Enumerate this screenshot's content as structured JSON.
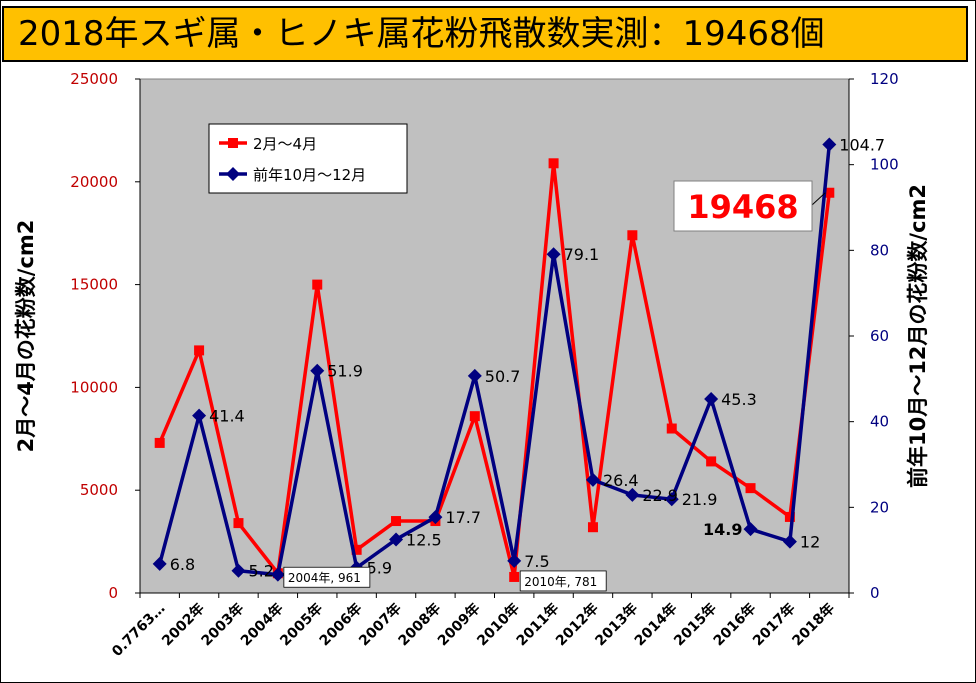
{
  "chart_data": {
    "type": "line",
    "title": "2018年スギ属・ヒノキ属花粉飛散数実測：19468個",
    "ylabel_left": "2月～4月の花粉数/cm2",
    "ylabel_right": "前年10月～12月の花粉数/cm2",
    "ylim_left": [
      0,
      25000
    ],
    "ylim_right": [
      0,
      120
    ],
    "yticks_left": [
      "0",
      "5000",
      "10000",
      "15000",
      "20000",
      "25000"
    ],
    "yticks_right": [
      "0",
      "20",
      "40",
      "60",
      "80",
      "100",
      "120"
    ],
    "categories": [
      "0.7763…",
      "2002年",
      "2003年",
      "2004年",
      "2005年",
      "2006年",
      "2007年",
      "2008年",
      "2009年",
      "2010年",
      "2011年",
      "2012年",
      "2013年",
      "2014年",
      "2015年",
      "2016年",
      "2017年",
      "2018年"
    ],
    "grid": false,
    "legend_position": "top-left",
    "series": [
      {
        "name": "2月～4月",
        "axis": "left",
        "color": "#ff0000",
        "values": [
          7300,
          11800,
          3400,
          961,
          15000,
          2100,
          3500,
          3500,
          8600,
          781,
          20900,
          3200,
          17400,
          8000,
          6400,
          5100,
          3700,
          19468
        ]
      },
      {
        "name": "前年10月～12月",
        "axis": "right",
        "color": "#000080",
        "values": [
          6.8,
          41.4,
          5.2,
          4.3,
          51.9,
          5.9,
          12.5,
          17.7,
          50.7,
          7.5,
          79.1,
          26.4,
          22.9,
          21.9,
          45.3,
          14.9,
          12,
          104.7
        ]
      }
    ],
    "data_labels": [
      {
        "series": 1,
        "index": 0,
        "text": "6.8"
      },
      {
        "series": 1,
        "index": 1,
        "text": "41.4"
      },
      {
        "series": 1,
        "index": 2,
        "text": "5.2"
      },
      {
        "series": 1,
        "index": 3,
        "text": "4.3"
      },
      {
        "series": 1,
        "index": 4,
        "text": "51.9"
      },
      {
        "series": 1,
        "index": 5,
        "text": "5.9"
      },
      {
        "series": 1,
        "index": 6,
        "text": "12.5"
      },
      {
        "series": 1,
        "index": 7,
        "text": "17.7"
      },
      {
        "series": 1,
        "index": 8,
        "text": "50.7"
      },
      {
        "series": 1,
        "index": 9,
        "text": "7.5"
      },
      {
        "series": 1,
        "index": 10,
        "text": "79.1"
      },
      {
        "series": 1,
        "index": 11,
        "text": "26.4"
      },
      {
        "series": 1,
        "index": 12,
        "text": "22.9"
      },
      {
        "series": 1,
        "index": 13,
        "text": "21.9"
      },
      {
        "series": 1,
        "index": 14,
        "text": "45.3"
      },
      {
        "series": 1,
        "index": 15,
        "text": "14.9",
        "bold": true
      },
      {
        "series": 1,
        "index": 16,
        "text": "12"
      },
      {
        "series": 1,
        "index": 17,
        "text": "104.7"
      }
    ],
    "callouts": [
      {
        "series": 0,
        "index": 3,
        "text": "2004年, 961"
      },
      {
        "series": 0,
        "index": 9,
        "text": "2010年, 781"
      }
    ],
    "highlight": {
      "series": 0,
      "index": 17,
      "text": "19468",
      "color": "#ff0000"
    }
  }
}
